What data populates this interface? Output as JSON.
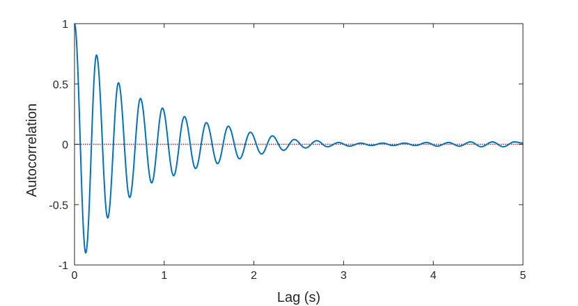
{
  "chart_data": {
    "type": "line",
    "xlabel": "Lag (s)",
    "ylabel": "Autocorrelation",
    "xlim": [
      0,
      5
    ],
    "ylim": [
      -1,
      1
    ],
    "x_ticks": [
      "0",
      "1",
      "2",
      "3",
      "4",
      "5"
    ],
    "y_ticks": [
      "-1",
      "-0.5",
      "0",
      "0.5",
      "1"
    ],
    "grid": false,
    "box": true,
    "colors": {
      "series": "#0072BD",
      "reference": "#E8000B",
      "axes": "#262626"
    },
    "series": [
      {
        "style": "solid",
        "x": [
          0,
          0.125,
          0.245,
          0.37,
          0.49,
          0.615,
          0.735,
          0.86,
          0.98,
          1.105,
          1.225,
          1.35,
          1.47,
          1.595,
          1.715,
          1.84,
          1.96,
          2.085,
          2.205,
          2.33,
          2.45,
          2.575,
          2.7,
          2.82,
          2.945,
          3.065,
          3.19,
          3.31,
          3.435,
          3.555,
          3.68,
          3.8,
          3.925,
          4.045,
          4.17,
          4.29,
          4.415,
          4.535,
          4.66,
          4.78,
          4.905,
          5.0
        ],
        "y": [
          1,
          -0.9,
          0.74,
          -0.61,
          0.51,
          -0.44,
          0.38,
          -0.32,
          0.3,
          -0.26,
          0.23,
          -0.2,
          0.18,
          -0.16,
          0.15,
          -0.12,
          0.1,
          -0.08,
          0.07,
          -0.05,
          0.04,
          -0.03,
          0.03,
          -0.02,
          0.015,
          -0.015,
          0.01,
          -0.01,
          0.01,
          -0.01,
          0.01,
          -0.01,
          0.015,
          -0.015,
          0.015,
          -0.015,
          0.02,
          -0.02,
          0.02,
          -0.02,
          0.02,
          0.01
        ]
      },
      {
        "style": "dotted",
        "x": [
          0,
          5
        ],
        "y": [
          0,
          0
        ]
      }
    ]
  }
}
